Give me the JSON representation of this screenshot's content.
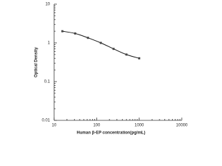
{
  "chart_data": {
    "type": "scatter",
    "x_label": "Human β-EP concentration(pg/mL)",
    "y_label": "Optical Density",
    "x": [
      15.63,
      31.25,
      62.5,
      125,
      250,
      500,
      1000
    ],
    "values": [
      2.0,
      1.75,
      1.35,
      1.0,
      0.7,
      0.5,
      0.4
    ],
    "color": "#444444",
    "line_color": "#111111",
    "fit_line": true,
    "xscale": "log",
    "yscale": "log",
    "xlim": [
      10,
      10000
    ],
    "xticks": [
      10,
      100,
      1000,
      10000
    ],
    "ylim": [
      0.01,
      10
    ],
    "yticks": [
      0.01,
      0.1,
      1,
      10
    ]
  }
}
